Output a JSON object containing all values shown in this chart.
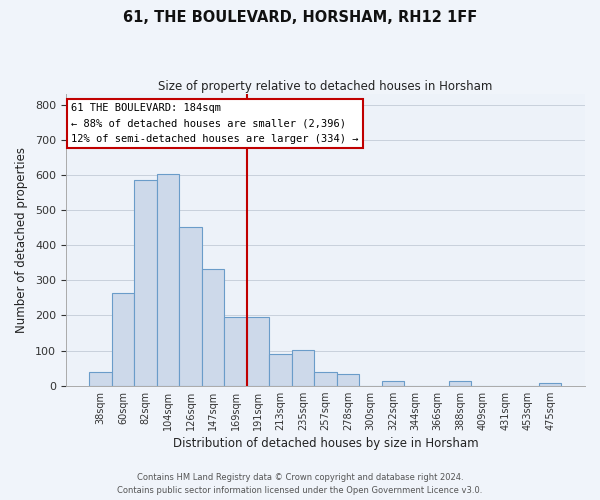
{
  "title": "61, THE BOULEVARD, HORSHAM, RH12 1FF",
  "subtitle": "Size of property relative to detached houses in Horsham",
  "xlabel": "Distribution of detached houses by size in Horsham",
  "ylabel": "Number of detached properties",
  "bar_labels": [
    "38sqm",
    "60sqm",
    "82sqm",
    "104sqm",
    "126sqm",
    "147sqm",
    "169sqm",
    "191sqm",
    "213sqm",
    "235sqm",
    "257sqm",
    "278sqm",
    "300sqm",
    "322sqm",
    "344sqm",
    "366sqm",
    "388sqm",
    "409sqm",
    "431sqm",
    "453sqm",
    "475sqm"
  ],
  "bar_values": [
    38,
    265,
    585,
    602,
    453,
    332,
    197,
    197,
    90,
    101,
    38,
    32,
    0,
    12,
    0,
    0,
    12,
    0,
    0,
    0,
    8
  ],
  "bar_color": "#cdd9ea",
  "bar_edge_color": "#6a9cc9",
  "vline_color": "#c00000",
  "ylim": [
    0,
    830
  ],
  "yticks": [
    0,
    100,
    200,
    300,
    400,
    500,
    600,
    700,
    800
  ],
  "annotation_title": "61 THE BOULEVARD: 184sqm",
  "annotation_line1": "← 88% of detached houses are smaller (2,396)",
  "annotation_line2": "12% of semi-detached houses are larger (334) →",
  "annotation_box_color": "#c00000",
  "footer_line1": "Contains HM Land Registry data © Crown copyright and database right 2024.",
  "footer_line2": "Contains public sector information licensed under the Open Government Licence v3.0.",
  "fig_bg": "#f0f4fa",
  "plot_bg": "#edf2f9",
  "grid_color": "#c8d0dc"
}
